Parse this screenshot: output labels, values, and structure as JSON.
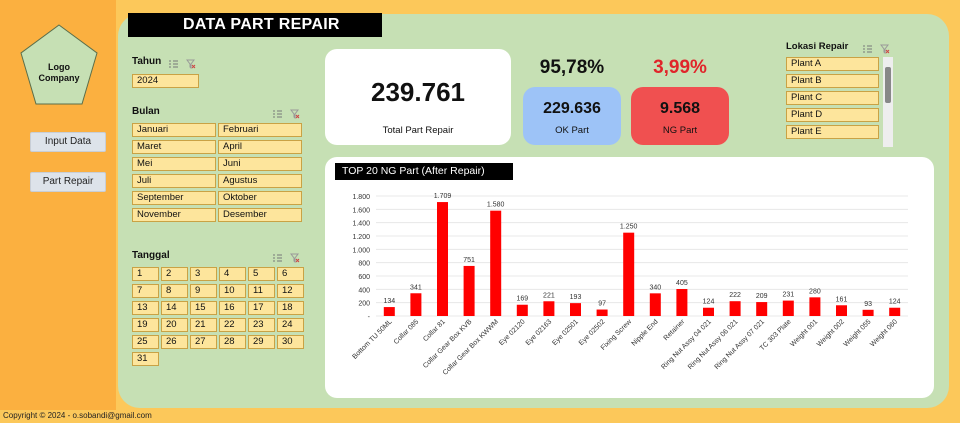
{
  "title": "DATA PART REPAIR",
  "logo": {
    "text_line1": "Logo",
    "text_line2": "Company"
  },
  "nav": {
    "input_data": "Input Data",
    "part_repair": "Part Repair"
  },
  "tahun": {
    "label": "Tahun",
    "items": [
      "2024"
    ]
  },
  "bulan": {
    "label": "Bulan",
    "items": [
      "Januari",
      "Februari",
      "Maret",
      "April",
      "Mei",
      "Juni",
      "Juli",
      "Agustus",
      "September",
      "Oktober",
      "November",
      "Desember"
    ]
  },
  "tanggal": {
    "label": "Tanggal",
    "items": [
      "1",
      "2",
      "3",
      "4",
      "5",
      "6",
      "7",
      "8",
      "9",
      "10",
      "11",
      "12",
      "13",
      "14",
      "15",
      "16",
      "17",
      "18",
      "19",
      "20",
      "21",
      "22",
      "23",
      "24",
      "25",
      "26",
      "27",
      "28",
      "29",
      "30",
      "31"
    ]
  },
  "kpi": {
    "total_value": "239.761",
    "total_label": "Total Part Repair",
    "ok_pct": "95,78%",
    "ok_value": "229.636",
    "ok_label": "OK Part",
    "ng_pct": "3,99%",
    "ng_value": "9.568",
    "ng_label": "NG Part"
  },
  "lokasi": {
    "label": "Lokasi Repair",
    "items": [
      "Plant A",
      "Plant B",
      "Plant C",
      "Plant D",
      "Plant E"
    ]
  },
  "colors": {
    "bar": "#ff0000",
    "ok_card": "#9dc3f7",
    "ng_card": "#f05050",
    "ng_pct": "#e0252a",
    "slicer": "#fde59c"
  },
  "chart_data": {
    "type": "bar",
    "title": "TOP 20 NG Part (After Repair)",
    "categories": [
      "Bottom TU 50ML",
      "Collar 085",
      "Collar 81",
      "Collar Gear Box KVB",
      "Collar Gear Box KWWM",
      "Eye 02120",
      "Eye 02163",
      "Eye 02501",
      "Eye 02502",
      "Fixing Screw",
      "Nipple End",
      "Retainer",
      "Ring Nut Assy 04 021",
      "Ring Nut Assy 06 021",
      "Ring Nut Assy 07 021",
      "TC 303 Plate",
      "Weight 001",
      "Weight 002",
      "Weight 055",
      "Weight 060"
    ],
    "values": [
      134,
      341,
      1709,
      751,
      1580,
      169,
      221,
      193,
      97,
      1250,
      340,
      405,
      124,
      222,
      209,
      231,
      280,
      161,
      93,
      124
    ],
    "value_labels": [
      "134",
      "341",
      "1.709",
      "751",
      "1.580",
      "169",
      "221",
      "193",
      "97",
      "1.250",
      "340",
      "405",
      "124",
      "222",
      "209",
      "231",
      "280",
      "161",
      "93",
      "124"
    ],
    "yticks": [
      "-",
      "200",
      "400",
      "600",
      "800",
      "1.000",
      "1.200",
      "1.400",
      "1.600",
      "1.800"
    ],
    "ylim": [
      0,
      1800
    ],
    "grid": true
  },
  "footer": "Copyright © 2024 - o.sobandi@gmail.com"
}
